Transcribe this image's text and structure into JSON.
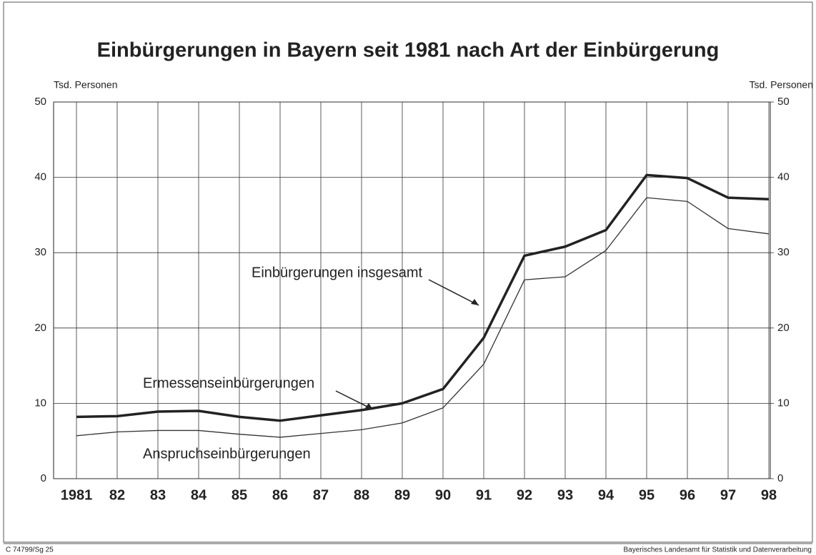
{
  "chart_data": {
    "type": "line",
    "title": "Einbürgerungen in Bayern seit 1981 nach Art der Einbürgerung",
    "y_label": "Tsd. Personen",
    "y2_label": "Tsd. Personen",
    "categories": [
      "1981",
      "82",
      "83",
      "84",
      "85",
      "86",
      "87",
      "88",
      "89",
      "90",
      "91",
      "92",
      "93",
      "94",
      "95",
      "96",
      "97",
      "98"
    ],
    "series": [
      {
        "name": "Einbürgerungen insgesamt",
        "color": "#222222",
        "values": [
          8.2,
          8.3,
          8.9,
          9.0,
          8.2,
          7.7,
          8.4,
          9.1,
          10.0,
          11.9,
          18.7,
          29.6,
          30.8,
          33.0,
          40.3,
          39.9,
          37.3,
          37.1
        ]
      },
      {
        "name": "Anspruchseinbürgerungen",
        "color": "#333333",
        "values": [
          5.7,
          6.2,
          6.4,
          6.4,
          5.9,
          5.5,
          6.0,
          6.5,
          7.4,
          9.4,
          15.2,
          26.4,
          26.8,
          30.3,
          37.3,
          36.8,
          33.2,
          32.5
        ]
      }
    ],
    "annotations": [
      "Ermessenseinbürgerungen"
    ],
    "ylim": [
      0,
      50
    ],
    "yticks": [
      0,
      10,
      20,
      30,
      40,
      50
    ],
    "y2lim": [
      0,
      50
    ],
    "y2ticks": [
      0,
      10,
      20,
      30,
      40,
      50
    ],
    "grid": true
  },
  "footer": {
    "left": "C 74799/Sg 25",
    "right": "Bayerisches Landesamt für Statistik und Datenverarbeitung"
  }
}
